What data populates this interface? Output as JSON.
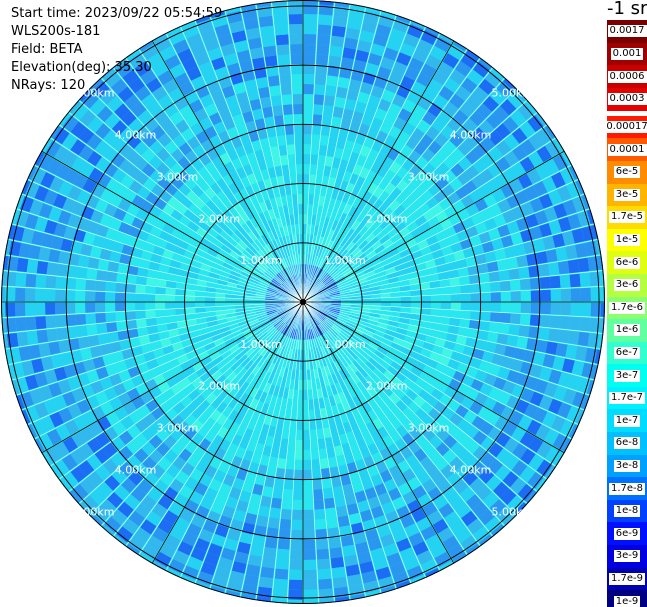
{
  "header": {
    "start_time": "Start time: 2023/09/22 05:54:59",
    "device": "WLS200s-181",
    "field": "Field: BETA",
    "elevation": "Elevation(deg): 35.30",
    "nrays": "NRays: 120"
  },
  "colorbar": {
    "title": "-1 sr",
    "upper_labels": [
      "0.0017",
      "0.001",
      "0.0006",
      "0.0003"
    ],
    "upper_colors": [
      "#7a0000",
      "#a00000",
      "#c80000",
      "#e60000"
    ],
    "lower_labels": [
      "0.00017",
      "0.0001",
      "6e-5",
      "3e-5",
      "1.7e-5",
      "1e-5",
      "6e-6",
      "3e-6",
      "1.7e-6",
      "1e-6",
      "6e-7",
      "3e-7",
      "1.7e-7",
      "1e-7",
      "6e-8",
      "3e-8",
      "1.7e-8",
      "1e-8",
      "6e-9",
      "3e-9",
      "1.7e-9",
      "1e-9"
    ],
    "lower_colors": [
      "#ff1a00",
      "#ff5a00",
      "#ff8c00",
      "#ffb400",
      "#ffdc00",
      "#ffff00",
      "#e0ff10",
      "#b4ff40",
      "#8cff70",
      "#60ffa0",
      "#30ffd0",
      "#00fff0",
      "#00f0ff",
      "#00dcff",
      "#00c0ff",
      "#00a0ff",
      "#0070ff",
      "#0040ff",
      "#0010ff",
      "#0000e0",
      "#0000b0",
      "#000080"
    ]
  },
  "chart_data": {
    "type": "heatmap",
    "projection": "polar PPI scan",
    "field": "BETA",
    "units": "-1 sr",
    "elevation_deg": 35.3,
    "n_rays": 120,
    "range_rings_km": [
      1.0,
      2.0,
      3.0,
      4.0,
      5.0
    ],
    "ring_labels": [
      "1.00km",
      "2.00km",
      "3.00km",
      "4.00km",
      "5.00km"
    ],
    "spoke_angles_deg": [
      0,
      30,
      60,
      90,
      120,
      150,
      180,
      210,
      240,
      270,
      300,
      330
    ],
    "max_range_km": 5.1,
    "dominant_level_by_range": [
      {
        "range_km": 0.0,
        "beta": "1.7e-8"
      },
      {
        "range_km": 1.0,
        "beta": "1.7e-7"
      },
      {
        "range_km": 2.0,
        "beta": "1.7e-7"
      },
      {
        "range_km": 3.0,
        "beta": "1e-7"
      },
      {
        "range_km": 4.0,
        "beta": "6e-8"
      },
      {
        "range_km": 5.0,
        "beta": "3e-8"
      }
    ],
    "grid": true,
    "legend": "right"
  }
}
